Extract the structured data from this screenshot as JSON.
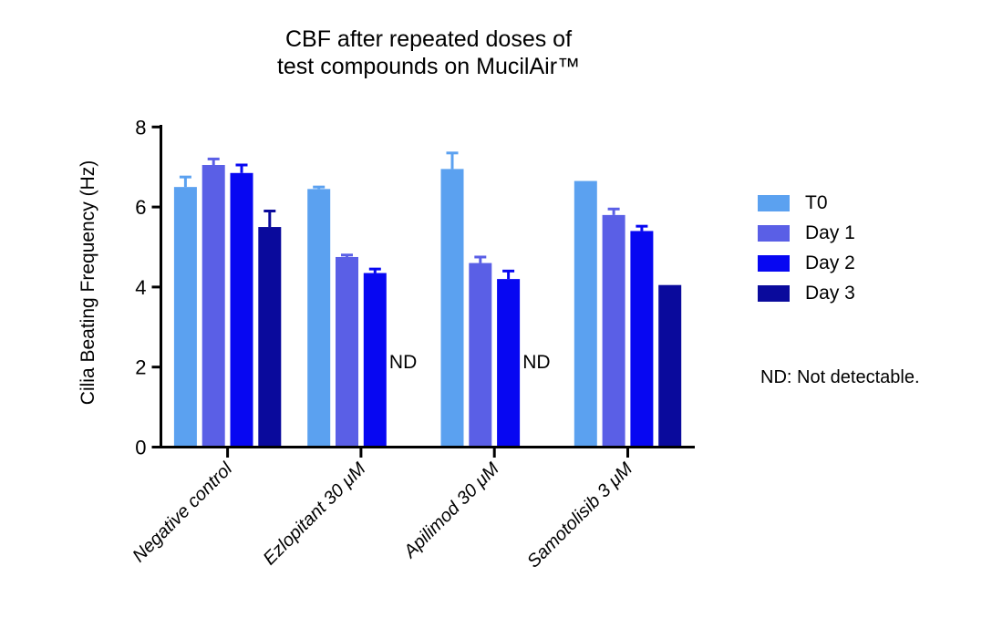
{
  "title": {
    "line1": "CBF after repeated doses of",
    "line2": "test compounds on MucilAir™"
  },
  "notes": {
    "nd_note": "ND: Not detectable."
  },
  "chart_data": {
    "type": "bar",
    "title": "CBF after repeated doses of test compounds on MucilAir™",
    "ylabel": "Cilia Beating Frequency (Hz)",
    "xlabel": "",
    "ylim": [
      0,
      8
    ],
    "yticks": [
      0,
      2,
      4,
      6,
      8
    ],
    "grid": false,
    "legend_position": "right",
    "axis_color": "#000000",
    "nd_label": "ND",
    "categories": [
      "Negative control",
      "Ezlopitant 30 μM",
      "Apilimod 30 μM",
      "Samotolisib 3 μM"
    ],
    "series": [
      {
        "name": "T0",
        "color": "#5BA1F0",
        "values": [
          6.5,
          6.45,
          6.95,
          6.65
        ],
        "errors": [
          0.25,
          0.05,
          0.4,
          0
        ]
      },
      {
        "name": "Day 1",
        "color": "#5A5FE6",
        "values": [
          7.05,
          4.75,
          4.6,
          5.8
        ],
        "errors": [
          0.15,
          0.05,
          0.15,
          0.15
        ]
      },
      {
        "name": "Day 2",
        "color": "#0707F2",
        "values": [
          6.85,
          4.35,
          4.2,
          5.4
        ],
        "errors": [
          0.2,
          0.1,
          0.2,
          0.12
        ]
      },
      {
        "name": "Day 3",
        "color": "#0A0A9C",
        "values": [
          5.5,
          null,
          null,
          4.05
        ],
        "errors": [
          0.4,
          null,
          null,
          0
        ]
      }
    ]
  }
}
